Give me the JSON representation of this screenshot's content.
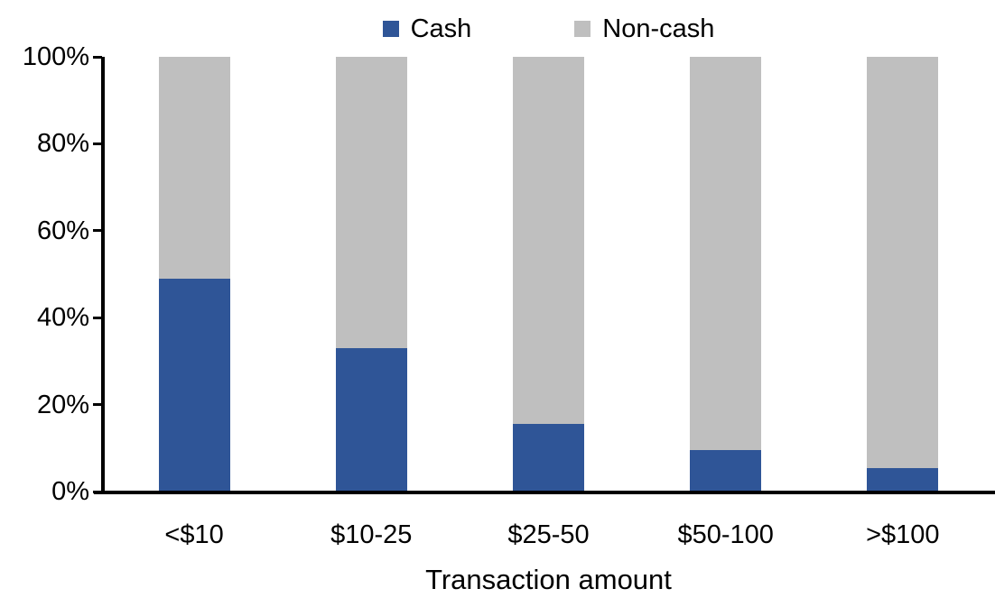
{
  "chart_data": {
    "type": "bar",
    "stacked": true,
    "orientation": "vertical",
    "xlabel": "Transaction amount",
    "ylabel": "",
    "ylim": [
      0,
      100
    ],
    "grid": false,
    "legend_position": "top-center",
    "background_color": "#FFFFFF",
    "axis_color": "#000000",
    "categories": [
      "<$10",
      "$10-25",
      "$25-50",
      "$50-100",
      ">$100"
    ],
    "series": [
      {
        "name": "Cash",
        "color": "#2F5597",
        "values": [
          49,
          33,
          15.5,
          9.5,
          5.5
        ]
      },
      {
        "name": "Non-cash",
        "color": "#BFBFBF",
        "values": [
          51,
          67,
          84.5,
          90.5,
          94.5
        ]
      }
    ],
    "y_tick_labels": [
      "0%",
      "20%",
      "40%",
      "60%",
      "80%",
      "100%"
    ]
  }
}
